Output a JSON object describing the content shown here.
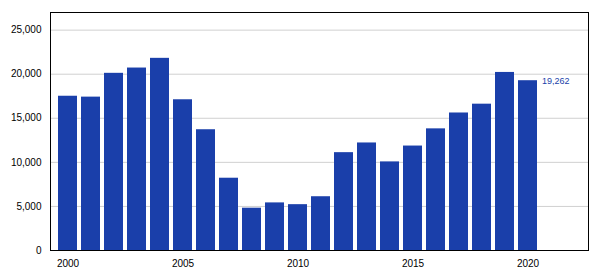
{
  "chart_data": {
    "type": "bar",
    "categories": [
      "2000",
      null,
      null,
      null,
      null,
      "2005",
      null,
      null,
      null,
      null,
      "2010",
      null,
      null,
      null,
      null,
      "2015",
      null,
      null,
      null,
      null,
      "2020"
    ],
    "values": [
      17500,
      17400,
      20100,
      20700,
      21800,
      17100,
      13700,
      8200,
      4800,
      5400,
      5200,
      6100,
      11100,
      12200,
      10050,
      11850,
      13800,
      15600,
      16600,
      20200,
      19262
    ],
    "color": "#1a3faa",
    "annotations": [
      {
        "text": "19,262",
        "x": "2020",
        "y": 19262
      }
    ],
    "ylim": [
      0,
      27000
    ],
    "yticks": [
      0,
      {
        "value": 5000,
        "label": "5,000"
      },
      {
        "value": 10000,
        "label": "10,000"
      },
      {
        "value": 15000,
        "label": "15,000"
      },
      {
        "value": 20000,
        "label": "20,000"
      },
      {
        "value": 25000,
        "label": "25,000"
      }
    ],
    "grid": true
  }
}
